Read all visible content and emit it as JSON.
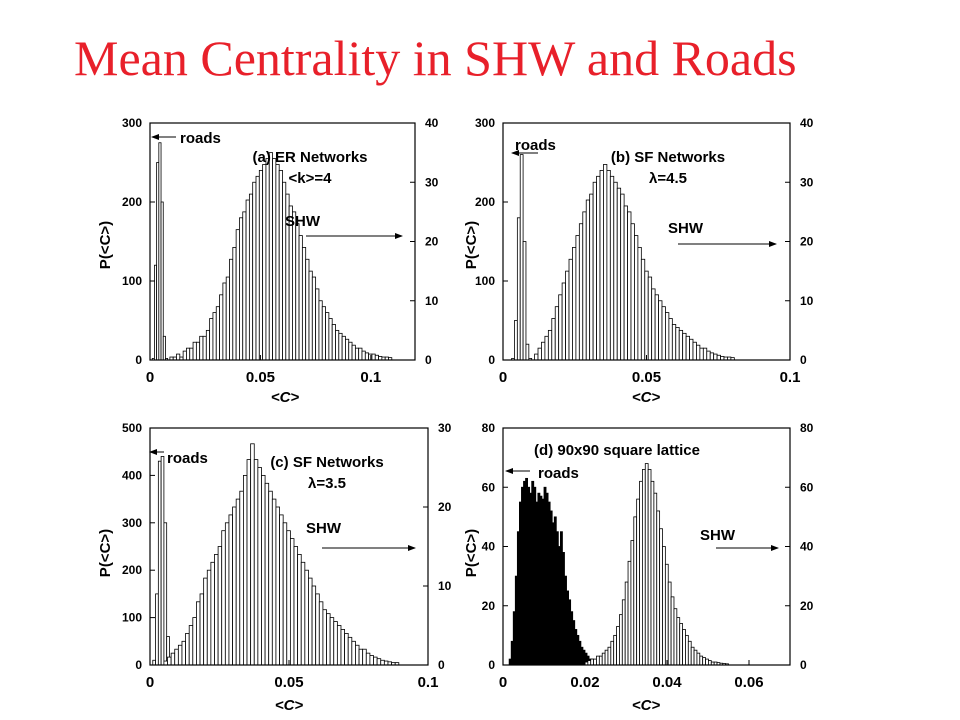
{
  "title": "Mean Centrality in SHW and Roads",
  "chart_data": [
    {
      "type": "bar",
      "title": "(a) ER Networks",
      "subtitle": "<k>=4",
      "xlabel": "<C>",
      "ylabel": "P(<C>)",
      "xlim": [
        0,
        0.12
      ],
      "ylim_left": [
        0,
        300
      ],
      "ylim_right": [
        0,
        40
      ],
      "xticks": [
        0,
        0.05,
        0.1
      ],
      "xtick_labels": [
        "0",
        "0.05",
        "0.1"
      ],
      "yticks_left": [
        "0",
        "100",
        "200",
        "300"
      ],
      "yticks_right": [
        "0",
        "10",
        "20",
        "30",
        "40"
      ],
      "annotations": [
        "roads",
        "SHW"
      ],
      "series": [
        {
          "name": "roads",
          "axis": "left",
          "x0": 0.001,
          "dx": 0.001,
          "values": [
            2,
            120,
            250,
            275,
            200,
            30,
            2
          ]
        },
        {
          "name": "SHW",
          "axis": "right",
          "x0": 0.009,
          "dx": 0.0015,
          "values": [
            0.5,
            0.5,
            1,
            0.5,
            1.5,
            2,
            2,
            3,
            3,
            4,
            4,
            5,
            7,
            8,
            9,
            11,
            13,
            14,
            17,
            19,
            22,
            24,
            25,
            27,
            28,
            30,
            31,
            32,
            33,
            34,
            35,
            34,
            33,
            32,
            30,
            28,
            26,
            25,
            23,
            21,
            19,
            17,
            15,
            14,
            12,
            10,
            9,
            8,
            7,
            6,
            5,
            4.5,
            4,
            3.5,
            3,
            2.5,
            2,
            2,
            1.5,
            1.2,
            1,
            1,
            0.8,
            0.6,
            0.5,
            0.5,
            0.4
          ]
        }
      ]
    },
    {
      "type": "bar",
      "title": "(b) SF Networks",
      "subtitle": "λ=4.5",
      "xlabel": "<C>",
      "ylabel": "P(<C>)",
      "xlim": [
        0,
        0.1
      ],
      "ylim_left": [
        0,
        300
      ],
      "ylim_right": [
        0,
        40
      ],
      "xticks": [
        0,
        0.05,
        0.1
      ],
      "xtick_labels": [
        "0",
        "0.05",
        "0.1"
      ],
      "yticks_left": [
        "0",
        "100",
        "200",
        "300"
      ],
      "yticks_right": [
        "0",
        "10",
        "20",
        "30",
        "40"
      ],
      "annotations": [
        "roads",
        "SHW"
      ],
      "series": [
        {
          "name": "roads",
          "axis": "left",
          "x0": 0.003,
          "dx": 0.001,
          "values": [
            2,
            50,
            180,
            260,
            150,
            20,
            2
          ]
        },
        {
          "name": "SHW",
          "axis": "right",
          "x0": 0.011,
          "dx": 0.0012,
          "values": [
            1,
            2,
            3,
            4,
            5,
            7,
            9,
            11,
            13,
            15,
            17,
            19,
            21,
            23,
            25,
            27,
            28,
            30,
            31,
            32,
            33,
            32,
            31,
            30,
            29,
            28,
            26,
            25,
            23,
            21,
            19,
            17,
            15,
            14,
            12,
            11,
            10,
            9,
            8,
            7,
            6,
            5.5,
            5,
            4.5,
            4,
            3.5,
            3,
            2.5,
            2,
            2,
            1.5,
            1.2,
            1,
            0.8,
            0.6,
            0.5,
            0.5,
            0.4
          ]
        }
      ]
    },
    {
      "type": "bar",
      "title": "(c) SF Networks",
      "subtitle": "λ=3.5",
      "xlabel": "<C>",
      "ylabel": "P(<C>)",
      "xlim": [
        0,
        0.1
      ],
      "ylim_left": [
        0,
        500
      ],
      "ylim_right": [
        0,
        30
      ],
      "xticks": [
        0,
        0.05,
        0.1
      ],
      "xtick_labels": [
        "0",
        "0.05",
        "0.1"
      ],
      "yticks_left": [
        "0",
        "100",
        "200",
        "300",
        "400",
        "500"
      ],
      "yticks_right": [
        "0",
        "10",
        "20",
        "30"
      ],
      "annotations": [
        "roads",
        "SHW"
      ],
      "series": [
        {
          "name": "roads",
          "axis": "left",
          "x0": 0.001,
          "dx": 0.001,
          "values": [
            10,
            150,
            430,
            440,
            300,
            60
          ]
        },
        {
          "name": "SHW",
          "axis": "right",
          "x0": 0.005,
          "dx": 0.0013,
          "values": [
            0.5,
            1,
            1.5,
            2,
            2.5,
            3,
            4,
            5,
            6,
            8,
            9,
            11,
            12,
            13,
            14,
            15,
            17,
            18,
            19,
            20,
            21,
            22,
            24,
            26,
            28,
            26,
            25,
            24,
            23,
            22,
            21,
            20,
            19,
            18,
            17,
            16,
            15,
            14,
            13,
            12,
            11,
            10,
            9,
            8,
            7,
            6.5,
            6,
            5.5,
            5,
            4.5,
            4,
            3.5,
            3,
            2.5,
            2,
            2,
            1.5,
            1.2,
            1,
            0.8,
            0.6,
            0.5,
            0.4,
            0.3,
            0.3
          ]
        }
      ]
    },
    {
      "type": "bar",
      "title": "(d) 90x90 square lattice",
      "xlabel": "<C>",
      "ylabel": "P(<C>)",
      "xlim": [
        0,
        0.07
      ],
      "ylim_left": [
        0,
        80
      ],
      "ylim_right": [
        0,
        80
      ],
      "xticks": [
        0,
        0.02,
        0.04,
        0.06
      ],
      "xtick_labels": [
        "0",
        "0.02",
        "0.04",
        "0.06"
      ],
      "yticks_left": [
        "0",
        "20",
        "40",
        "60",
        "80"
      ],
      "yticks_right": [
        "0",
        "20",
        "40",
        "60",
        "80"
      ],
      "annotations": [
        "roads",
        "SHW"
      ],
      "series": [
        {
          "name": "roads",
          "axis": "left",
          "x0": 0.0015,
          "dx": 0.0005,
          "values": [
            2,
            8,
            18,
            30,
            45,
            55,
            60,
            62,
            63,
            60,
            58,
            62,
            60,
            55,
            58,
            57,
            56,
            60,
            58,
            55,
            52,
            48,
            50,
            45,
            40,
            45,
            38,
            30,
            25,
            22,
            18,
            15,
            12,
            10,
            8,
            6,
            5,
            4,
            3,
            2,
            2
          ]
        },
        {
          "name": "SHW",
          "axis": "right",
          "x0": 0.02,
          "dx": 0.0007,
          "values": [
            1,
            1.5,
            2,
            2,
            3,
            3,
            4,
            5,
            6,
            8,
            10,
            13,
            17,
            22,
            28,
            35,
            42,
            50,
            56,
            62,
            66,
            68,
            66,
            62,
            58,
            52,
            46,
            40,
            34,
            28,
            23,
            19,
            16,
            14,
            12,
            10,
            8,
            6,
            5,
            4,
            3,
            2.5,
            2,
            1.5,
            1,
            1,
            0.8,
            0.6,
            0.5,
            0.4
          ]
        }
      ]
    }
  ]
}
